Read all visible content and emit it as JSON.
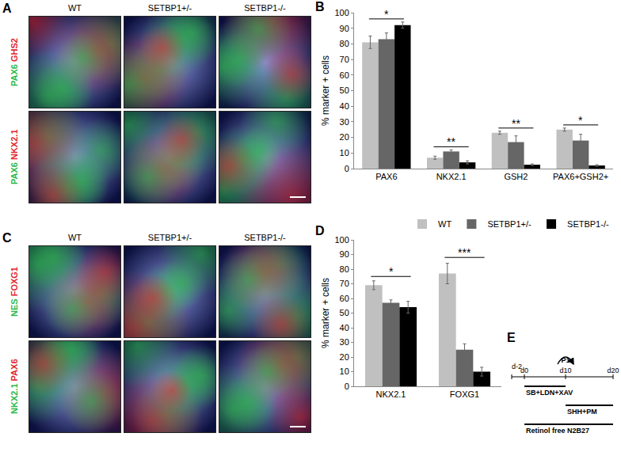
{
  "image_panels": [
    {
      "letter": "A",
      "columns": [
        "WT",
        "SETBP1+/-",
        "SETBP1-/-"
      ],
      "rows": [
        {
          "stains": [
            {
              "text": "PAX6",
              "color": "#2db84a"
            },
            {
              "text": "GHS2",
              "color": "#e0262b"
            }
          ]
        },
        {
          "stains": [
            {
              "text": "PAX6",
              "color": "#2db84a"
            },
            {
              "text": "NKX2.1",
              "color": "#e0262b"
            }
          ]
        }
      ]
    },
    {
      "letter": "C",
      "columns": [
        "WT",
        "SETBP1+/-",
        "SETBP1-/-"
      ],
      "rows": [
        {
          "stains": [
            {
              "text": "NES",
              "color": "#2db84a"
            },
            {
              "text": "FOXG1",
              "color": "#e0262b"
            }
          ]
        },
        {
          "stains": [
            {
              "text": "NKX2.1",
              "color": "#2db84a"
            },
            {
              "text": "PAX6",
              "color": "#e0262b"
            }
          ]
        }
      ]
    }
  ],
  "chart_letters": [
    "B",
    "D"
  ],
  "chart_data": [
    {
      "type": "bar",
      "categories": [
        "PAX6",
        "NKX2.1",
        "GSH2",
        "PAX6+GSH2+"
      ],
      "series": [
        {
          "name": "WT",
          "color": "#c0c0c0",
          "values": [
            81,
            7,
            23,
            25
          ],
          "errors": [
            4,
            1,
            1,
            1
          ]
        },
        {
          "name": "SETBP1+/-",
          "color": "#666666",
          "values": [
            83,
            11,
            17,
            18
          ],
          "errors": [
            4,
            1,
            4,
            4
          ]
        },
        {
          "name": "SETBP1-/-",
          "color": "#000000",
          "values": [
            92,
            4,
            2.5,
            2
          ],
          "errors": [
            2,
            1,
            0.5,
            0.5
          ]
        }
      ],
      "ylabel": "% marker + cells",
      "ylim": [
        0,
        100
      ],
      "yticks": [
        0,
        10,
        20,
        30,
        40,
        50,
        60,
        70,
        80,
        90,
        100
      ],
      "grid": false,
      "annotations": [
        {
          "category": "PAX6",
          "text": "*",
          "y": 96
        },
        {
          "category": "NKX2.1",
          "text": "**",
          "y": 14
        },
        {
          "category": "GSH2",
          "text": "**",
          "y": 26
        },
        {
          "category": "PAX6+GSH2+",
          "text": "*",
          "y": 28
        }
      ]
    },
    {
      "type": "bar",
      "categories": [
        "NKX2.1",
        "FOXG1"
      ],
      "series": [
        {
          "name": "WT",
          "color": "#c0c0c0",
          "values": [
            69,
            77
          ],
          "errors": [
            3,
            7
          ]
        },
        {
          "name": "SETBP1+/-",
          "color": "#666666",
          "values": [
            57,
            25
          ],
          "errors": [
            2,
            4
          ]
        },
        {
          "name": "SETBP1-/-",
          "color": "#000000",
          "values": [
            54,
            10
          ],
          "errors": [
            4,
            3
          ]
        }
      ],
      "ylabel": "% marker + cells",
      "ylim": [
        0,
        100
      ],
      "yticks": [
        0,
        10,
        20,
        30,
        40,
        50,
        60,
        70,
        80,
        90,
        100
      ],
      "grid": false,
      "legend": "top",
      "annotations": [
        {
          "category": "NKX2.1",
          "text": "*",
          "y": 75
        },
        {
          "category": "FOXG1",
          "text": "***",
          "y": 88
        }
      ]
    }
  ],
  "timeline": {
    "letter": "E",
    "days": [
      "d-2",
      "d0",
      "d10",
      "d20"
    ],
    "passage": {
      "text": "P1",
      "at": "d10"
    },
    "treatments": [
      {
        "text": "SB+LDN+XAV",
        "from": "d0",
        "to": "d10"
      },
      {
        "text": "SHH+PM",
        "from": "d10",
        "to": "d20"
      },
      {
        "text": "Retinol free N2B27",
        "from": "d0",
        "to": "d20"
      }
    ]
  }
}
